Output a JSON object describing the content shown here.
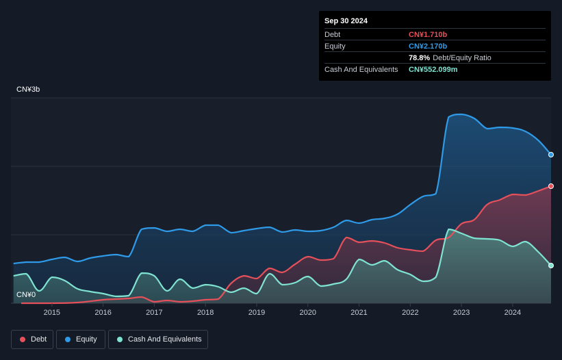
{
  "tooltip": {
    "date": "Sep 30 2024",
    "rows": [
      {
        "label": "Debt",
        "value": "CN¥1.710b",
        "color": "#e5505a"
      },
      {
        "label": "Equity",
        "value": "CN¥2.170b",
        "color": "#2f9be8"
      },
      {
        "label": "",
        "value": "78.8%",
        "extra": "Debt/Equity Ratio",
        "color": "#ffffff"
      },
      {
        "label": "Cash And Equivalents",
        "value": "CN¥552.099m",
        "color": "#7fe3d2"
      }
    ]
  },
  "colors": {
    "debt": "#e5505a",
    "equity": "#2f9be8",
    "cash": "#7fe3d2",
    "background": "#151b26"
  },
  "chart_data": {
    "type": "area",
    "y_top_label": "CN¥3b",
    "y_bottom_label": "CN¥0",
    "ylim": [
      0,
      3.0
    ],
    "xlim": [
      2014.2,
      2024.75
    ],
    "x_ticks": [
      2015,
      2016,
      2017,
      2018,
      2019,
      2020,
      2021,
      2022,
      2023,
      2024
    ],
    "x_tick_labels": [
      "2015",
      "2016",
      "2017",
      "2018",
      "2019",
      "2020",
      "2021",
      "2022",
      "2023",
      "2024"
    ],
    "legend": [
      "Debt",
      "Equity",
      "Cash And Equivalents"
    ],
    "series": [
      {
        "name": "Equity",
        "points": [
          [
            2014.25,
            0.58
          ],
          [
            2014.5,
            0.6
          ],
          [
            2014.75,
            0.6
          ],
          [
            2015.0,
            0.64
          ],
          [
            2015.25,
            0.67
          ],
          [
            2015.5,
            0.61
          ],
          [
            2015.75,
            0.66
          ],
          [
            2016.0,
            0.69
          ],
          [
            2016.25,
            0.71
          ],
          [
            2016.5,
            0.68
          ],
          [
            2016.75,
            1.08
          ],
          [
            2017.0,
            1.1
          ],
          [
            2017.25,
            1.05
          ],
          [
            2017.5,
            1.08
          ],
          [
            2017.75,
            1.05
          ],
          [
            2018.0,
            1.14
          ],
          [
            2018.25,
            1.14
          ],
          [
            2018.5,
            1.03
          ],
          [
            2018.75,
            1.06
          ],
          [
            2019.0,
            1.09
          ],
          [
            2019.25,
            1.11
          ],
          [
            2019.5,
            1.04
          ],
          [
            2019.75,
            1.07
          ],
          [
            2020.0,
            1.05
          ],
          [
            2020.25,
            1.06
          ],
          [
            2020.5,
            1.11
          ],
          [
            2020.75,
            1.21
          ],
          [
            2021.0,
            1.17
          ],
          [
            2021.25,
            1.22
          ],
          [
            2021.5,
            1.24
          ],
          [
            2021.75,
            1.3
          ],
          [
            2022.0,
            1.44
          ],
          [
            2022.25,
            1.56
          ],
          [
            2022.5,
            1.6
          ],
          [
            2022.75,
            2.72
          ],
          [
            2023.0,
            2.76
          ],
          [
            2023.25,
            2.7
          ],
          [
            2023.5,
            2.55
          ],
          [
            2023.75,
            2.57
          ],
          [
            2024.0,
            2.56
          ],
          [
            2024.25,
            2.51
          ],
          [
            2024.5,
            2.38
          ],
          [
            2024.75,
            2.17
          ]
        ]
      },
      {
        "name": "Debt",
        "points": [
          [
            2014.4,
            0.0
          ],
          [
            2015.0,
            0.0
          ],
          [
            2015.5,
            0.01
          ],
          [
            2016.0,
            0.05
          ],
          [
            2016.25,
            0.06
          ],
          [
            2016.5,
            0.07
          ],
          [
            2016.75,
            0.09
          ],
          [
            2017.0,
            0.02
          ],
          [
            2017.25,
            0.04
          ],
          [
            2017.5,
            0.02
          ],
          [
            2017.75,
            0.03
          ],
          [
            2018.0,
            0.05
          ],
          [
            2018.25,
            0.06
          ],
          [
            2018.5,
            0.29
          ],
          [
            2018.75,
            0.4
          ],
          [
            2019.0,
            0.36
          ],
          [
            2019.25,
            0.51
          ],
          [
            2019.5,
            0.45
          ],
          [
            2019.75,
            0.57
          ],
          [
            2020.0,
            0.68
          ],
          [
            2020.25,
            0.63
          ],
          [
            2020.5,
            0.65
          ],
          [
            2020.75,
            0.96
          ],
          [
            2021.0,
            0.89
          ],
          [
            2021.25,
            0.91
          ],
          [
            2021.5,
            0.88
          ],
          [
            2021.75,
            0.81
          ],
          [
            2022.0,
            0.78
          ],
          [
            2022.25,
            0.76
          ],
          [
            2022.5,
            0.92
          ],
          [
            2022.75,
            0.96
          ],
          [
            2023.0,
            1.16
          ],
          [
            2023.25,
            1.22
          ],
          [
            2023.5,
            1.44
          ],
          [
            2023.75,
            1.51
          ],
          [
            2024.0,
            1.59
          ],
          [
            2024.25,
            1.58
          ],
          [
            2024.5,
            1.64
          ],
          [
            2024.75,
            1.71
          ]
        ]
      },
      {
        "name": "Cash And Equivalents",
        "points": [
          [
            2014.25,
            0.4
          ],
          [
            2014.5,
            0.43
          ],
          [
            2014.75,
            0.18
          ],
          [
            2015.0,
            0.38
          ],
          [
            2015.25,
            0.33
          ],
          [
            2015.5,
            0.21
          ],
          [
            2015.75,
            0.17
          ],
          [
            2016.0,
            0.14
          ],
          [
            2016.25,
            0.1
          ],
          [
            2016.5,
            0.11
          ],
          [
            2016.75,
            0.44
          ],
          [
            2017.0,
            0.4
          ],
          [
            2017.25,
            0.18
          ],
          [
            2017.5,
            0.35
          ],
          [
            2017.75,
            0.22
          ],
          [
            2018.0,
            0.27
          ],
          [
            2018.25,
            0.24
          ],
          [
            2018.5,
            0.16
          ],
          [
            2018.75,
            0.22
          ],
          [
            2019.0,
            0.14
          ],
          [
            2019.25,
            0.43
          ],
          [
            2019.5,
            0.27
          ],
          [
            2019.75,
            0.3
          ],
          [
            2020.0,
            0.39
          ],
          [
            2020.25,
            0.25
          ],
          [
            2020.5,
            0.28
          ],
          [
            2020.75,
            0.35
          ],
          [
            2021.0,
            0.64
          ],
          [
            2021.25,
            0.56
          ],
          [
            2021.5,
            0.62
          ],
          [
            2021.75,
            0.49
          ],
          [
            2022.0,
            0.42
          ],
          [
            2022.25,
            0.32
          ],
          [
            2022.5,
            0.38
          ],
          [
            2022.75,
            1.08
          ],
          [
            2023.0,
            1.02
          ],
          [
            2023.25,
            0.95
          ],
          [
            2023.5,
            0.94
          ],
          [
            2023.75,
            0.92
          ],
          [
            2024.0,
            0.83
          ],
          [
            2024.25,
            0.9
          ],
          [
            2024.5,
            0.75
          ],
          [
            2024.75,
            0.55
          ]
        ]
      }
    ]
  },
  "legend_items": [
    {
      "label": "Debt"
    },
    {
      "label": "Equity"
    },
    {
      "label": "Cash And Equivalents"
    }
  ]
}
